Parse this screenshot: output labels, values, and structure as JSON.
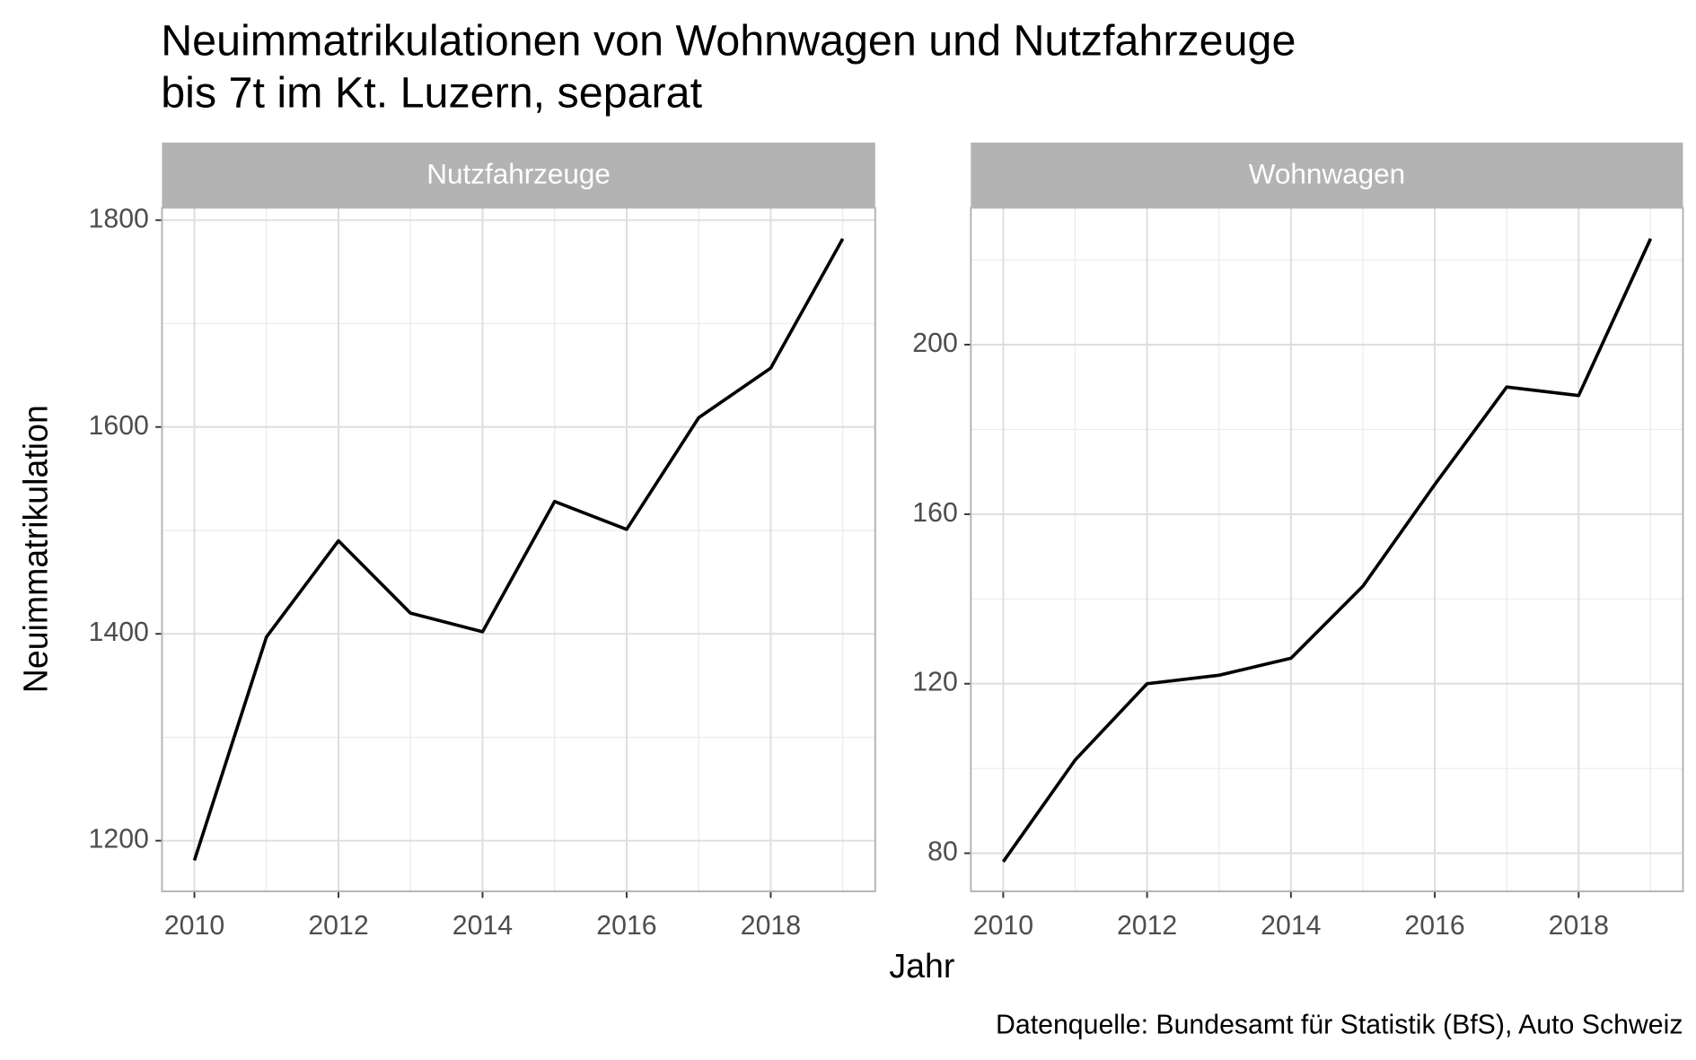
{
  "title": [
    "Neuimmatrikulationen von Wohnwagen und Nutzfahrzeuge",
    "bis 7t im Kt. Luzern, separat"
  ],
  "x_label": "Jahr",
  "y_label": "Neuimmatrikulation",
  "caption": "Datenquelle: Bundesamt für Statistik (BfS), Auto Schweiz",
  "chart_data": [
    {
      "type": "line",
      "title": "Nutzfahrzeuge",
      "color": "#000000",
      "x": [
        2010,
        2011,
        2012,
        2013,
        2014,
        2015,
        2016,
        2017,
        2018,
        2019
      ],
      "values": [
        1181,
        1397,
        1490,
        1420,
        1402,
        1528,
        1501,
        1609,
        1657,
        1782
      ],
      "xlim": [
        2009.55,
        2019.45
      ],
      "xticks": [
        2010,
        2012,
        2014,
        2016,
        2018
      ],
      "ylim": [
        1151,
        1812
      ],
      "yticks": [
        1200,
        1400,
        1600,
        1800
      ],
      "grid": true
    },
    {
      "type": "line",
      "title": "Wohnwagen",
      "color": "#000000",
      "x": [
        2010,
        2011,
        2012,
        2013,
        2014,
        2015,
        2016,
        2017,
        2018,
        2019
      ],
      "values": [
        78,
        102,
        120,
        122,
        126,
        143,
        167,
        190,
        188,
        225
      ],
      "xlim": [
        2009.55,
        2019.45
      ],
      "xticks": [
        2010,
        2012,
        2014,
        2016,
        2018
      ],
      "ylim": [
        71,
        232.3
      ],
      "yticks": [
        80,
        120,
        160,
        200
      ],
      "grid": true
    }
  ]
}
